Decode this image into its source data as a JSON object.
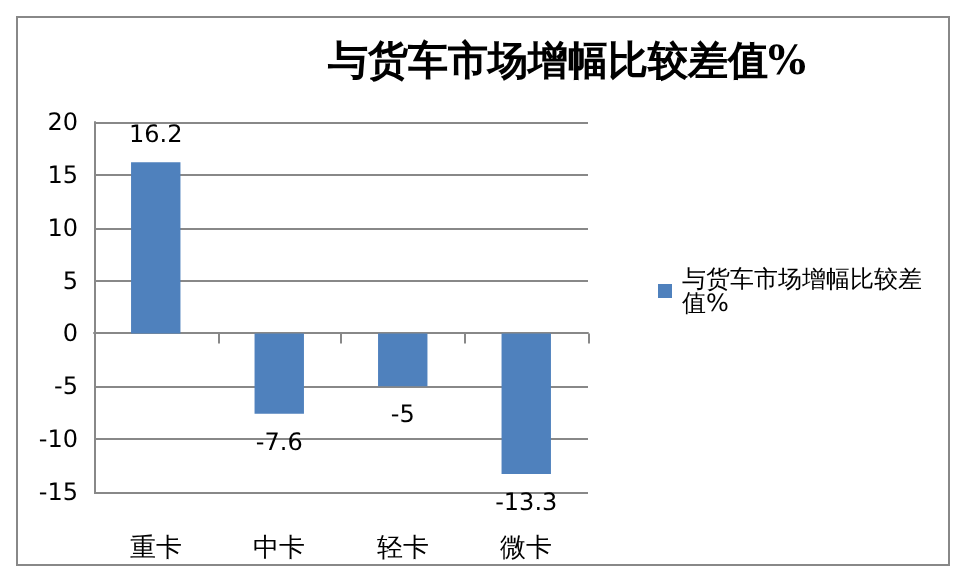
{
  "chart_data": {
    "type": "bar",
    "title": "与货车市场增幅比较差值%",
    "categories": [
      "重卡",
      "中卡",
      "轻卡",
      "微卡"
    ],
    "series": [
      {
        "name": "与货车市场增幅比较差值%",
        "color": "#4f81bd",
        "values": [
          16.2,
          -7.6,
          -5,
          -13.3
        ]
      }
    ],
    "ylim": [
      -15,
      20
    ],
    "yticks": [
      -15,
      -10,
      -5,
      0,
      5,
      10,
      15,
      20
    ],
    "grid": "y",
    "legend": "right",
    "data_labels": true
  }
}
